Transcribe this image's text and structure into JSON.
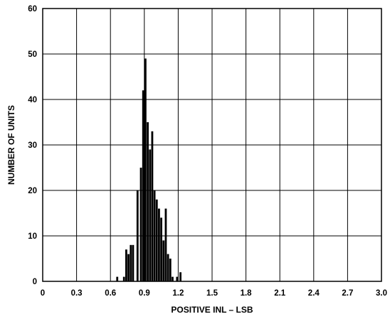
{
  "chart_data": {
    "type": "bar",
    "title": "",
    "xlabel": "POSITIVE INL – LSB",
    "ylabel": "NUMBER OF UNITS",
    "xlim": [
      0,
      3.0
    ],
    "ylim": [
      0,
      60
    ],
    "xticks": [
      "0",
      "0.3",
      "0.6",
      "0.9",
      "1.2",
      "1.5",
      "1.8",
      "2.1",
      "2.4",
      "2.7",
      "3.0"
    ],
    "yticks": [
      "0",
      "10",
      "20",
      "30",
      "40",
      "50",
      "60"
    ],
    "grid": true,
    "bar_color": "#000000",
    "bars": [
      {
        "x": 0.66,
        "y": 1
      },
      {
        "x": 0.72,
        "y": 1
      },
      {
        "x": 0.74,
        "y": 7
      },
      {
        "x": 0.76,
        "y": 6
      },
      {
        "x": 0.78,
        "y": 8
      },
      {
        "x": 0.8,
        "y": 8
      },
      {
        "x": 0.84,
        "y": 20
      },
      {
        "x": 0.87,
        "y": 25
      },
      {
        "x": 0.89,
        "y": 42
      },
      {
        "x": 0.91,
        "y": 49
      },
      {
        "x": 0.93,
        "y": 35
      },
      {
        "x": 0.95,
        "y": 29
      },
      {
        "x": 0.97,
        "y": 33
      },
      {
        "x": 0.99,
        "y": 20
      },
      {
        "x": 1.01,
        "y": 18
      },
      {
        "x": 1.03,
        "y": 16
      },
      {
        "x": 1.05,
        "y": 14
      },
      {
        "x": 1.07,
        "y": 9
      },
      {
        "x": 1.09,
        "y": 16
      },
      {
        "x": 1.11,
        "y": 6
      },
      {
        "x": 1.13,
        "y": 5
      },
      {
        "x": 1.15,
        "y": 1
      },
      {
        "x": 1.19,
        "y": 1
      },
      {
        "x": 1.22,
        "y": 2
      }
    ]
  }
}
